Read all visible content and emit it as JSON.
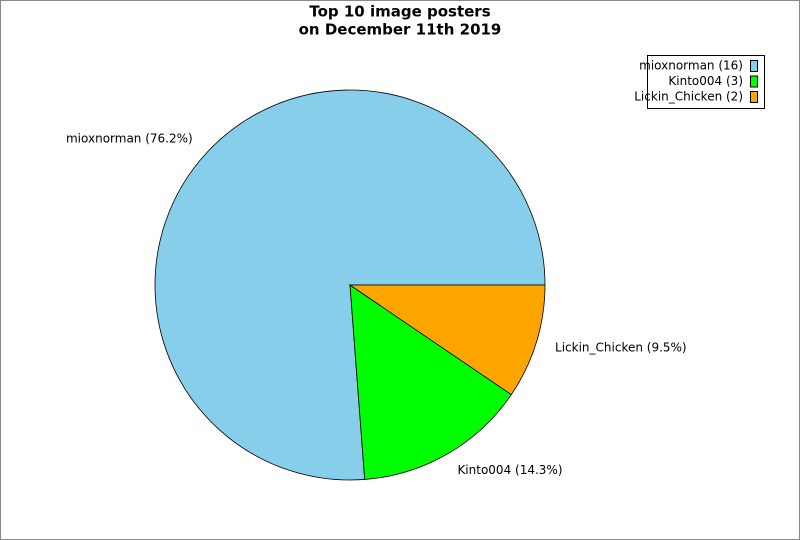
{
  "chart_data": {
    "type": "pie",
    "title": [
      "Top 10 image posters",
      "on December 11th 2019"
    ],
    "values": [
      76.2,
      14.3,
      9.5
    ],
    "value_labels": [
      "mioxnorman (76.2%)",
      "Kinto004 (14.3%)",
      "Lickin_Chicken (9.5%)"
    ],
    "legend": [
      "mioxnorman (16)",
      "Kinto004 (3)",
      "Lickin_Chicken (2)"
    ],
    "colors": [
      "#87ceeb",
      "#00ff00",
      "#ffa500"
    ],
    "legend_position": "upper right"
  }
}
